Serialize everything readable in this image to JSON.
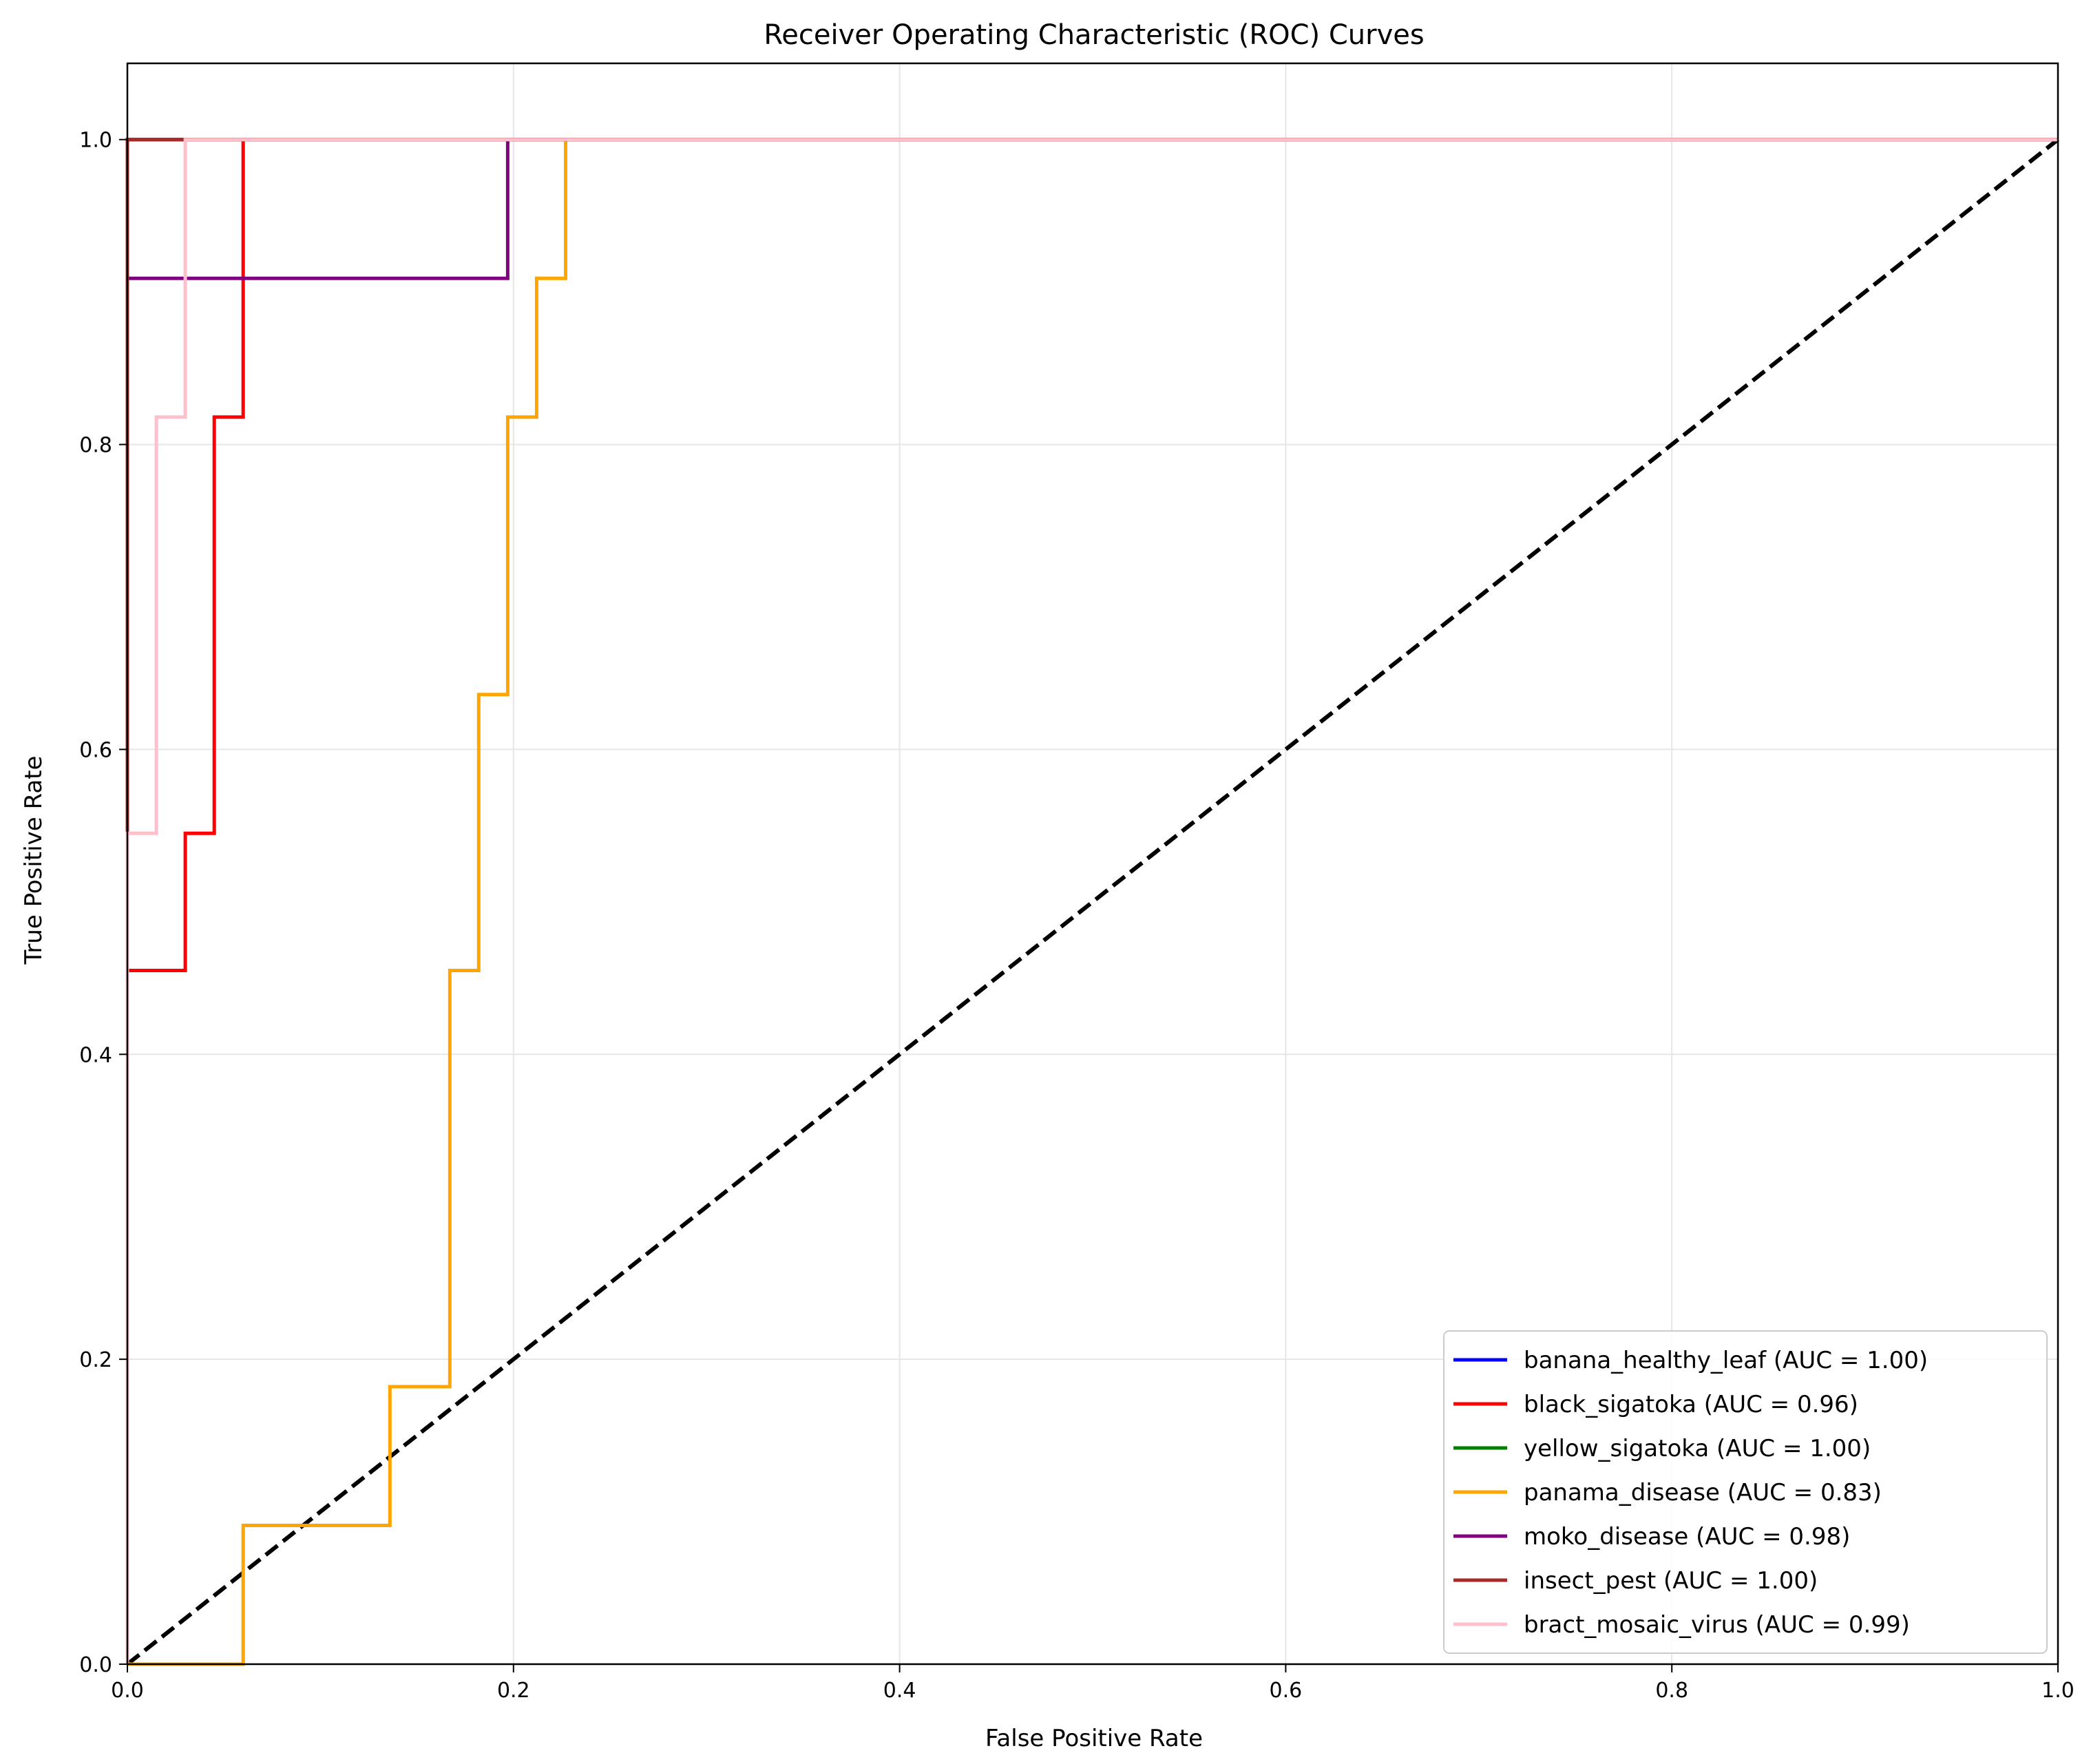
{
  "chart_data": {
    "type": "line",
    "title": "Receiver Operating Characteristic (ROC) Curves",
    "xlabel": "False Positive Rate",
    "ylabel": "True Positive Rate",
    "xlim": [
      0.0,
      1.0
    ],
    "ylim": [
      0.0,
      1.05
    ],
    "xticks": [
      0.0,
      0.2,
      0.4,
      0.6,
      0.8,
      1.0
    ],
    "yticks": [
      0.0,
      0.2,
      0.4,
      0.6,
      0.8,
      1.0
    ],
    "xtick_labels": [
      "0.0",
      "0.2",
      "0.4",
      "0.6",
      "0.8",
      "1.0"
    ],
    "ytick_labels": [
      "0.0",
      "0.2",
      "0.4",
      "0.6",
      "0.8",
      "1.0"
    ],
    "grid": true,
    "legend_position": "lower-right",
    "diagonal": {
      "x": [
        0,
        1
      ],
      "y": [
        0,
        1
      ],
      "color": "#000000",
      "style": "dashed"
    },
    "series": [
      {
        "name": "banana_healthy_leaf (AUC = 1.00)",
        "color": "#0000ff",
        "x": [
          0,
          0,
          1
        ],
        "y": [
          0,
          1,
          1
        ]
      },
      {
        "name": "black_sigatoka (AUC = 0.96)",
        "color": "#ff0000",
        "x": [
          0,
          0,
          0.03,
          0.03,
          0.045,
          0.045,
          0.06,
          0.06,
          1
        ],
        "y": [
          0,
          0.455,
          0.455,
          0.545,
          0.545,
          0.818,
          0.818,
          1.0,
          1.0
        ]
      },
      {
        "name": "yellow_sigatoka (AUC = 1.00)",
        "color": "#008000",
        "x": [
          0,
          0,
          1
        ],
        "y": [
          0,
          1,
          1
        ]
      },
      {
        "name": "panama_disease (AUC = 0.83)",
        "color": "#ffa500",
        "x": [
          0,
          0.06,
          0.06,
          0.136,
          0.136,
          0.167,
          0.167,
          0.182,
          0.182,
          0.197,
          0.197,
          0.212,
          0.212,
          0.227,
          0.227,
          1
        ],
        "y": [
          0,
          0,
          0.091,
          0.091,
          0.182,
          0.182,
          0.455,
          0.455,
          0.636,
          0.636,
          0.818,
          0.818,
          0.909,
          0.909,
          1.0,
          1.0
        ]
      },
      {
        "name": "moko_disease (AUC = 0.98)",
        "color": "#800080",
        "x": [
          0,
          0,
          0.197,
          0.197,
          1
        ],
        "y": [
          0,
          0.909,
          0.909,
          1.0,
          1.0
        ]
      },
      {
        "name": "insect_pest (AUC = 1.00)",
        "color": "#a52a2a",
        "x": [
          0,
          0,
          1
        ],
        "y": [
          0,
          1,
          1
        ]
      },
      {
        "name": "bract_mosaic_virus (AUC = 0.99)",
        "color": "#ffc0cb",
        "x": [
          0,
          0,
          0.015,
          0.015,
          0.03,
          0.03,
          1
        ],
        "y": [
          0,
          0.545,
          0.545,
          0.818,
          0.818,
          1.0,
          1.0
        ]
      }
    ]
  }
}
